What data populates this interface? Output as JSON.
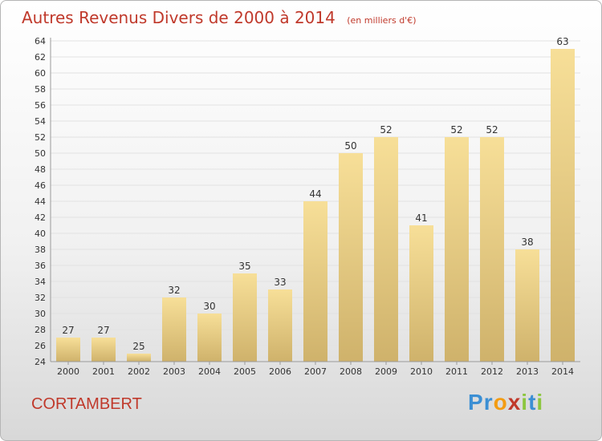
{
  "chart_data": {
    "type": "bar",
    "title": "Autres Revenus Divers de 2000 à 2014",
    "subtitle": "(en milliers d'€)",
    "categories": [
      "2000",
      "2001",
      "2002",
      "2003",
      "2004",
      "2005",
      "2006",
      "2007",
      "2008",
      "2009",
      "2010",
      "2011",
      "2012",
      "2013",
      "2014"
    ],
    "values": [
      27,
      27,
      25,
      32,
      30,
      35,
      33,
      44,
      50,
      52,
      41,
      52,
      52,
      38,
      63
    ],
    "ylim": [
      24,
      64
    ],
    "ytick_step": 2,
    "xlabel": "",
    "ylabel": "",
    "grid": true,
    "bar_color": "#e8cc85"
  },
  "footer": {
    "commune": "CORTAMBERT",
    "logo_letters": [
      "P",
      "r",
      "o",
      "x",
      "i",
      "t",
      "i"
    ],
    "logo_colors": [
      "#3b8fd4",
      "#3b8fd4",
      "#f39c12",
      "#c0392b",
      "#8cc63f",
      "#3b8fd4",
      "#8cc63f"
    ]
  },
  "colors": {
    "title": "#c0392b",
    "commune": "#c0392b"
  }
}
